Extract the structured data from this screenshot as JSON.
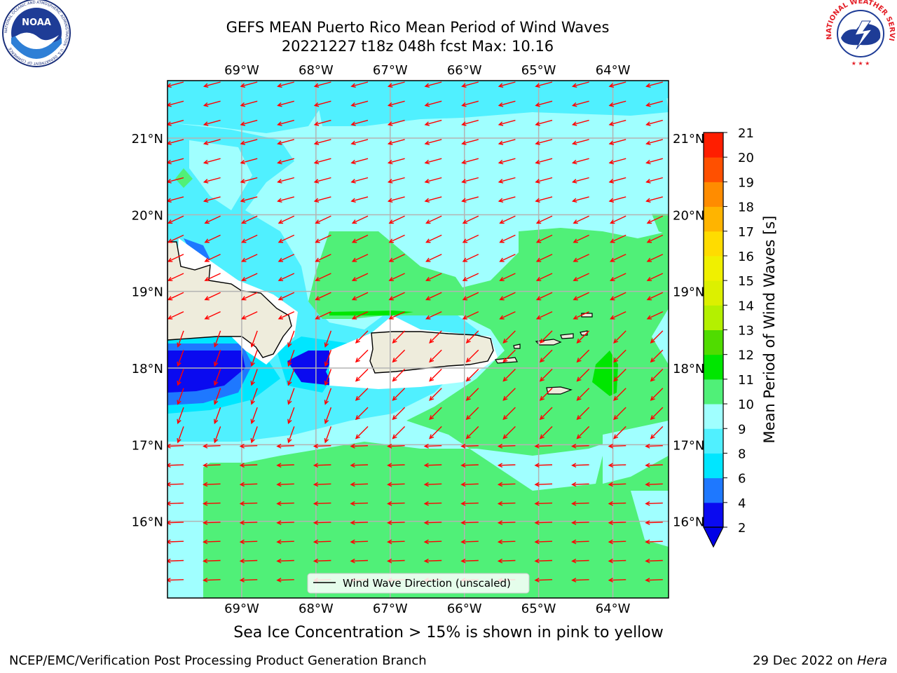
{
  "title": {
    "line1": "GEFS MEAN Puerto Rico Mean Period of Wind Waves",
    "line2": "20221227 t18z 048h fcst   Max: 10.16"
  },
  "logos": {
    "left": "noara-logo",
    "right": "national-weather-service-logo",
    "left_ring_text": "NATIONAL OCEANIC AND ATMOSPHERIC ADMINISTRATION · U.S. DEPARTMENT OF COMMERCE",
    "left_center_text": "NOAA",
    "right_ring_text": "NATIONAL WEATHER SERVICE"
  },
  "map": {
    "lon_ticks": [
      "69°W",
      "68°W",
      "67°W",
      "66°W",
      "65°W",
      "64°W"
    ],
    "lat_ticks": [
      "21°N",
      "20°N",
      "19°N",
      "18°N",
      "17°N",
      "16°N"
    ],
    "lon_values": [
      -69,
      -68,
      -67,
      -66,
      -65,
      -64
    ],
    "lat_values": [
      21,
      20,
      19,
      18,
      17,
      16
    ],
    "extent": {
      "lon": [
        -70,
        -63.25
      ],
      "lat": [
        15,
        21.75
      ]
    },
    "legend_label": "Wind Wave Direction (unscaled)",
    "arrow_color": "#ff0000",
    "land_color": "#eeecdc",
    "gridlines": true
  },
  "colorbar": {
    "label": "Mean Period of Wind Waves [s]",
    "ticks": [
      "2",
      "4",
      "6",
      "8",
      "9",
      "10",
      "11",
      "12",
      "13",
      "14",
      "15",
      "16",
      "17",
      "18",
      "19",
      "20",
      "21"
    ],
    "colors": [
      "#0a0af0",
      "#1e78ff",
      "#00e6ff",
      "#50f0ff",
      "#a0ffff",
      "#50f078",
      "#00e600",
      "#50dc00",
      "#b4f000",
      "#dcf000",
      "#f0f000",
      "#ffdc00",
      "#ffb400",
      "#ff8c00",
      "#ff5000",
      "#ff1e00",
      "#ff0000"
    ],
    "extend_color": "#0000e6"
  },
  "subtitle": "Sea Ice Concentration > 15% is shown in pink to yellow",
  "footer": {
    "left": "NCEP/EMC/Verification Post Processing Product Generation Branch",
    "right_date": "29 Dec 2022 on ",
    "right_machine": "Hera"
  }
}
